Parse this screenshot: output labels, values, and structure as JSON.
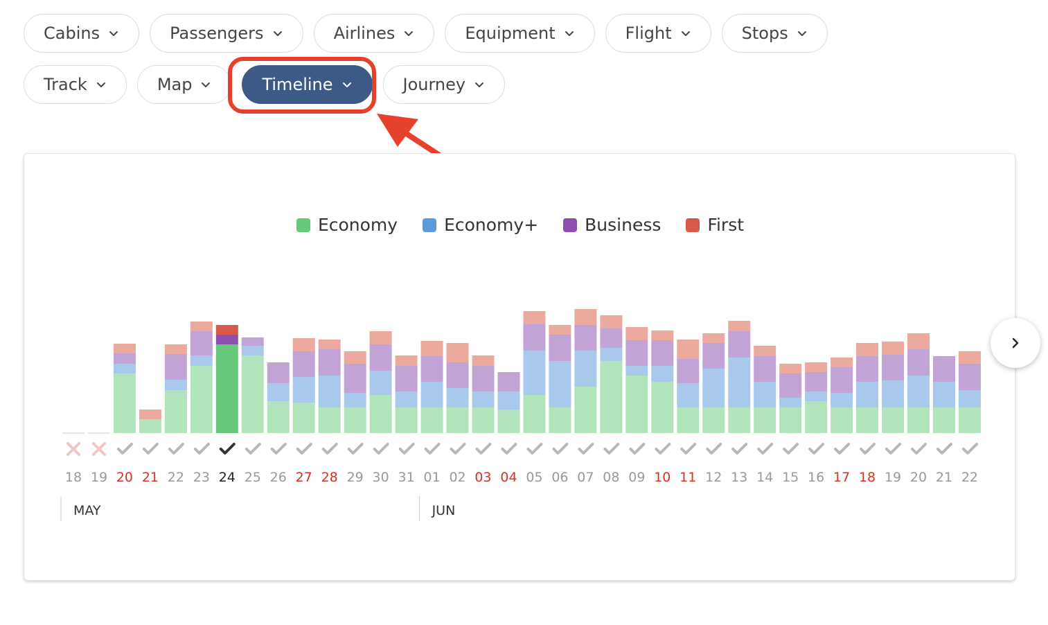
{
  "filters": {
    "row1": [
      {
        "name": "cabins-filter",
        "label": "Cabins"
      },
      {
        "name": "passengers-filter",
        "label": "Passengers"
      },
      {
        "name": "airlines-filter",
        "label": "Airlines"
      },
      {
        "name": "equipment-filter",
        "label": "Equipment"
      },
      {
        "name": "flight-filter",
        "label": "Flight"
      },
      {
        "name": "stops-filter",
        "label": "Stops"
      }
    ],
    "row2": [
      {
        "name": "track-filter",
        "label": "Track"
      },
      {
        "name": "map-filter",
        "label": "Map"
      },
      {
        "name": "timeline-filter",
        "label": "Timeline",
        "active": true
      },
      {
        "name": "journey-filter",
        "label": "Journey"
      }
    ]
  },
  "colors": {
    "active_pill": "#3c5a85",
    "annotation": "#e5412c",
    "weekend_date": "#d93025"
  },
  "legend": [
    {
      "label": "Economy",
      "color": "#67c97a"
    },
    {
      "label": "Economy+",
      "color": "#5b9bd9"
    },
    {
      "label": "Business",
      "color": "#8e4fb0"
    },
    {
      "label": "First",
      "color": "#d9584a"
    }
  ],
  "chart_data": {
    "type": "bar",
    "stacked": true,
    "selected_date": "24",
    "series_names": [
      "Economy",
      "Economy+",
      "Business",
      "First"
    ],
    "categories": [
      "18",
      "19",
      "20",
      "21",
      "22",
      "23",
      "24",
      "25",
      "26",
      "27",
      "28",
      "29",
      "30",
      "31",
      "01",
      "02",
      "03",
      "04",
      "05",
      "06",
      "07",
      "08",
      "09",
      "10",
      "11",
      "12",
      "13",
      "14",
      "15",
      "16",
      "17",
      "18",
      "19",
      "20",
      "21",
      "22"
    ],
    "available": [
      false,
      false,
      true,
      true,
      true,
      true,
      true,
      true,
      true,
      true,
      true,
      true,
      true,
      true,
      true,
      true,
      true,
      true,
      true,
      true,
      true,
      true,
      true,
      true,
      true,
      true,
      true,
      true,
      true,
      true,
      true,
      true,
      true,
      true,
      true,
      true
    ],
    "weekend": [
      false,
      false,
      true,
      true,
      false,
      false,
      false,
      false,
      false,
      true,
      true,
      false,
      false,
      false,
      false,
      false,
      true,
      true,
      false,
      false,
      false,
      false,
      false,
      true,
      true,
      false,
      false,
      false,
      false,
      false,
      true,
      true,
      false,
      false,
      false,
      false
    ],
    "stacks": [
      [
        0,
        0,
        0,
        0
      ],
      [
        0,
        0,
        0,
        0
      ],
      [
        86,
        14,
        15,
        14
      ],
      [
        20,
        0,
        0,
        14
      ],
      [
        62,
        15,
        37,
        14
      ],
      [
        97,
        15,
        35,
        14
      ],
      [
        128,
        0,
        14,
        14
      ],
      [
        112,
        14,
        12,
        0
      ],
      [
        46,
        26,
        30,
        0
      ],
      [
        44,
        37,
        37,
        19
      ],
      [
        37,
        46,
        38,
        14
      ],
      [
        37,
        21,
        42,
        18
      ],
      [
        55,
        35,
        38,
        19
      ],
      [
        37,
        23,
        37,
        15
      ],
      [
        37,
        37,
        37,
        22
      ],
      [
        37,
        28,
        37,
        28
      ],
      [
        37,
        23,
        37,
        15
      ],
      [
        34,
        26,
        28,
        0
      ],
      [
        55,
        64,
        38,
        19
      ],
      [
        37,
        67,
        38,
        14
      ],
      [
        67,
        52,
        37,
        23
      ],
      [
        104,
        19,
        28,
        19
      ],
      [
        83,
        14,
        37,
        19
      ],
      [
        74,
        23,
        37,
        14
      ],
      [
        37,
        35,
        35,
        28
      ],
      [
        37,
        56,
        37,
        14
      ],
      [
        37,
        72,
        38,
        15
      ],
      [
        37,
        37,
        37,
        15
      ],
      [
        37,
        14,
        35,
        14
      ],
      [
        46,
        14,
        28,
        14
      ],
      [
        37,
        21,
        37,
        14
      ],
      [
        37,
        37,
        37,
        19
      ],
      [
        37,
        39,
        37,
        19
      ],
      [
        37,
        46,
        38,
        23
      ],
      [
        37,
        37,
        37,
        0
      ],
      [
        37,
        25,
        38,
        18
      ]
    ],
    "months": [
      {
        "label": "MAY",
        "start_index": 0
      },
      {
        "label": "JUN",
        "start_index": 14
      }
    ]
  }
}
